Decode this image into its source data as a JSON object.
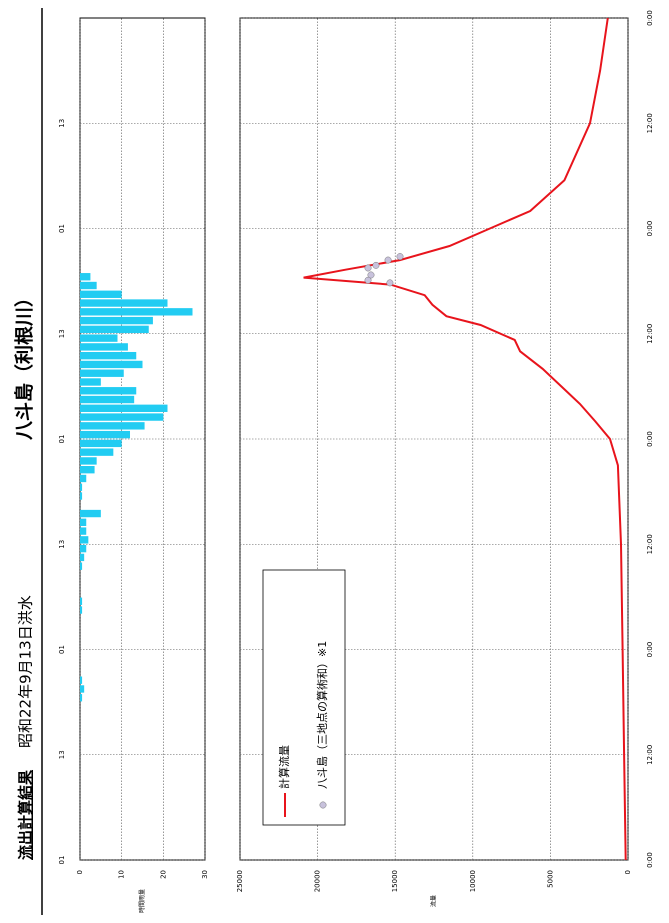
{
  "header": {
    "title": "流出計算結果",
    "event": "昭和22年9月13日洪水",
    "station": "八斗島（利根川）"
  },
  "chart_data": [
    {
      "type": "histogram",
      "ylabel": "時間雨量",
      "color": "#22ccf2",
      "y_inverted": true,
      "xaxis_position": "top",
      "grid": true,
      "bins": [
        0,
        1,
        2,
        3,
        4,
        5,
        6,
        7,
        8,
        9,
        10,
        11,
        12,
        13,
        14,
        15,
        16,
        17,
        18,
        19,
        20,
        21,
        22,
        23,
        24,
        25,
        26,
        27,
        28,
        29,
        30,
        31,
        32,
        33,
        34,
        35,
        36,
        37,
        38,
        39,
        40,
        41,
        42,
        43,
        44,
        45,
        46,
        47,
        48,
        49,
        50,
        51,
        52,
        53,
        54,
        55,
        56,
        57,
        58,
        59,
        60,
        61,
        62,
        63,
        64,
        65,
        66,
        67,
        68,
        69,
        70,
        71,
        72,
        73,
        74,
        75,
        76,
        77,
        78,
        79,
        80,
        81,
        82,
        83,
        84,
        85,
        86,
        87,
        88,
        89,
        90,
        91,
        92,
        93,
        94,
        95,
        96
      ],
      "values": [
        0,
        0,
        0,
        0,
        0,
        0,
        0,
        0,
        0,
        0,
        0,
        0,
        0,
        0,
        0,
        0,
        0,
        0,
        0.5,
        1,
        0.5,
        0,
        0,
        0,
        0,
        0,
        0,
        0,
        0.5,
        0.5,
        0,
        0,
        0,
        0.5,
        1,
        1.5,
        2,
        1.5,
        1.5,
        5,
        0,
        0.5,
        0.5,
        1.5,
        3.5,
        4,
        8,
        10,
        12,
        15.5,
        20,
        21,
        13,
        13.5,
        5,
        10.5,
        15,
        13.5,
        11.5,
        9,
        16.5,
        17.5,
        27,
        21,
        10,
        4,
        2.5,
        0,
        0,
        0,
        0,
        0,
        0,
        0,
        0,
        0,
        0,
        0,
        0,
        0,
        0,
        0,
        0,
        0,
        0,
        0,
        0,
        0,
        0,
        0,
        0,
        0,
        0,
        0,
        0,
        0
      ],
      "xlim": [
        0,
        96
      ],
      "xticks": [
        {
          "value": 0,
          "label": "01"
        },
        {
          "value": 12,
          "label": "13"
        },
        {
          "value": 24,
          "label": "01"
        },
        {
          "value": 36,
          "label": "13"
        },
        {
          "value": 48,
          "label": "01"
        },
        {
          "value": 60,
          "label": "13"
        },
        {
          "value": 72,
          "label": "01"
        },
        {
          "value": 84,
          "label": "13"
        }
      ],
      "ylim": [
        0,
        30
      ],
      "yticks": [
        0,
        10,
        20,
        30
      ]
    },
    {
      "type": "line",
      "ylabel": "流量",
      "xaxis_position": "bottom",
      "grid": true,
      "series": [
        {
          "name": "計算流量",
          "color": "#e8141c",
          "x": [
            0,
            12,
            24,
            36,
            45,
            48,
            50,
            52,
            54,
            56,
            58,
            59.3,
            61,
            62,
            63.3,
            64.4,
            65.6,
            66.4,
            67.3,
            68.4,
            70,
            72,
            74,
            77.5,
            84,
            90,
            96
          ],
          "values": [
            150,
            250,
            350,
            450,
            650,
            1160,
            2100,
            3100,
            4300,
            5500,
            6950,
            7300,
            9500,
            11700,
            12600,
            13100,
            15300,
            20900,
            18200,
            14700,
            11500,
            8900,
            6300,
            4100,
            2450,
            1800,
            1300
          ]
        },
        {
          "name": "八斗島（三地点の算術和）※1",
          "color": "#c8c2dc",
          "marker": "circle",
          "x": [
            67.5,
            66.7,
            66.1,
            67.8,
            68.4,
            68.8,
            65.8
          ],
          "values": [
            16750,
            16560,
            16750,
            16240,
            15460,
            14690,
            15340
          ]
        }
      ],
      "xlim": [
        0,
        96
      ],
      "xticks": [
        {
          "value": 0,
          "label": "0:00"
        },
        {
          "value": 12,
          "label": "12:00"
        },
        {
          "value": 24,
          "label": "0:00"
        },
        {
          "value": 36,
          "label": "12:00"
        },
        {
          "value": 48,
          "label": "0:00"
        },
        {
          "value": 60,
          "label": "12:00"
        },
        {
          "value": 72,
          "label": "0:00"
        },
        {
          "value": 84,
          "label": "12:00"
        },
        {
          "value": 96,
          "label": "0:00"
        }
      ],
      "ylim": [
        0,
        25000
      ],
      "yticks": [
        0,
        5000,
        10000,
        15000,
        20000,
        25000
      ]
    }
  ]
}
